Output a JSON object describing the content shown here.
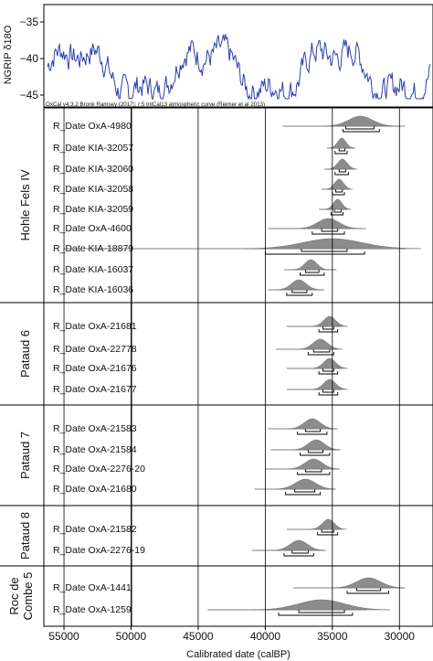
{
  "chart_data": {
    "type": "oxcal-multiplot",
    "colors": {
      "ngrip_line": "#2b3fb0",
      "distribution_fill": "#8c8c8c",
      "frame": "#000000"
    },
    "ngrip": {
      "ylabel": "NGRIP δ18O",
      "yticks": [
        "−35",
        "−40",
        "−45"
      ],
      "ylim": [
        -46,
        -33
      ],
      "attribution": "OxCal v4.3.2 Bronk Ramsey (2017); r:5 IntCal13 atmospheric curve (Reimer et al 2013)"
    },
    "x_axis": {
      "label": "Calibrated date (calBP)",
      "reversed": true,
      "xlim": [
        56500,
        27500
      ],
      "ticks": [
        55000,
        50000,
        45000,
        40000,
        35000,
        30000
      ],
      "tick_labels": [
        "55000",
        "50000",
        "45000",
        "40000",
        "35000",
        "30000"
      ]
    },
    "groups": [
      {
        "name": "Hohle Fels IV",
        "dates": [
          {
            "label": "R_Date OxA-4980",
            "peak": 32900,
            "sigma": 900,
            "range95": [
              38700,
              29600
            ],
            "hpd68": [
              34000,
              31900
            ],
            "hpd95": [
              34200,
              31500
            ]
          },
          {
            "label": "R_Date KIA-32057",
            "peak": 34300,
            "sigma": 320,
            "range95": [
              35400,
              33300
            ],
            "hpd68": [
              34500,
              34050
            ],
            "hpd95": [
              34800,
              33900
            ]
          },
          {
            "label": "R_Date KIA-32060",
            "peak": 34250,
            "sigma": 360,
            "range95": [
              35600,
              33300
            ],
            "hpd68": [
              34500,
              34000
            ],
            "hpd95": [
              34800,
              33800
            ]
          },
          {
            "label": "R_Date KIA-32058",
            "peak": 34500,
            "sigma": 340,
            "range95": [
              35800,
              33800
            ],
            "hpd68": [
              34750,
              34250
            ],
            "hpd95": [
              35000,
              34100
            ]
          },
          {
            "label": "R_Date KIA-32059",
            "peak": 34600,
            "sigma": 330,
            "range95": [
              36000,
              33900
            ],
            "hpd68": [
              34850,
              34350
            ],
            "hpd95": [
              35100,
              34200
            ]
          },
          {
            "label": "R_Date OxA-4600",
            "peak": 35300,
            "sigma": 800,
            "range95": [
              39800,
              32500
            ],
            "hpd68": [
              35800,
              34600
            ],
            "hpd95": [
              36500,
              34100
            ]
          },
          {
            "label": "R_Date KIA-18879",
            "peak": 35000,
            "sigma": 2200,
            "range95": [
              55000,
              29500
            ],
            "hpd68": [
              37300,
              33900
            ],
            "hpd95": [
              40000,
              32600
            ]
          },
          {
            "label": "R_Date KIA-16037",
            "peak": 36600,
            "sigma": 450,
            "range95": [
              38600,
              34700
            ],
            "hpd68": [
              37000,
              36000
            ],
            "hpd95": [
              37400,
              35600
            ]
          },
          {
            "label": "R_Date KIA-16036",
            "peak": 37500,
            "sigma": 550,
            "range95": [
              39800,
              35600
            ],
            "hpd68": [
              38000,
              36900
            ],
            "hpd95": [
              38400,
              36500
            ]
          }
        ]
      },
      {
        "name": "Pataud 6",
        "dates": [
          {
            "label": "R_Date OxA-21681",
            "peak": 35200,
            "sigma": 450,
            "range95": [
              38400,
              34300
            ],
            "hpd68": [
              35700,
              34900
            ],
            "hpd95": [
              36000,
              34600
            ]
          },
          {
            "label": "R_Date OxA-22778",
            "peak": 35900,
            "sigma": 550,
            "range95": [
              39200,
              34600
            ],
            "hpd68": [
              36400,
              35200
            ],
            "hpd95": [
              36800,
              34900
            ]
          },
          {
            "label": "R_Date OxA-21676",
            "peak": 35200,
            "sigma": 450,
            "range95": [
              38400,
              34300
            ],
            "hpd68": [
              35700,
              34900
            ],
            "hpd95": [
              36000,
              34600
            ]
          },
          {
            "label": "R_Date OxA-21677",
            "peak": 35200,
            "sigma": 450,
            "range95": [
              38400,
              34300
            ],
            "hpd68": [
              35700,
              34900
            ],
            "hpd95": [
              36000,
              34600
            ]
          }
        ]
      },
      {
        "name": "Pataud 7",
        "dates": [
          {
            "label": "R_Date OxA-21583",
            "peak": 36500,
            "sigma": 600,
            "range95": [
              39800,
              34600
            ],
            "hpd68": [
              37000,
              35900
            ],
            "hpd95": [
              37600,
              35400
            ]
          },
          {
            "label": "R_Date OxA-21584",
            "peak": 36200,
            "sigma": 600,
            "range95": [
              39600,
              34500
            ],
            "hpd68": [
              36800,
              35700
            ],
            "hpd95": [
              37400,
              35200
            ]
          },
          {
            "label": "R_Date OxA-2276-20",
            "peak": 36400,
            "sigma": 650,
            "range95": [
              40000,
              34500
            ],
            "hpd68": [
              37000,
              35800
            ],
            "hpd95": [
              37600,
              35200
            ]
          },
          {
            "label": "R_Date OxA-21680",
            "peak": 37000,
            "sigma": 750,
            "range95": [
              40800,
              34800
            ],
            "hpd68": [
              37800,
              36300
            ],
            "hpd95": [
              38500,
              35900
            ]
          }
        ]
      },
      {
        "name": "Pataud 8",
        "dates": [
          {
            "label": "R_Date OxA-21582",
            "peak": 35300,
            "sigma": 450,
            "range95": [
              38400,
              34400
            ],
            "hpd68": [
              35800,
              34900
            ],
            "hpd95": [
              36100,
              34600
            ]
          },
          {
            "label": "R_Date OxA-2276-19",
            "peak": 37500,
            "sigma": 650,
            "range95": [
              41000,
              35500
            ],
            "hpd68": [
              38000,
              36800
            ],
            "hpd95": [
              38600,
              36400
            ]
          }
        ]
      },
      {
        "name": "Roc de Combe 5",
        "dates": [
          {
            "label": "R_Date OxA-1441",
            "peak": 32300,
            "sigma": 900,
            "range95": [
              37900,
              29600
            ],
            "hpd68": [
              33200,
              31400
            ],
            "hpd95": [
              33900,
              30800
            ]
          },
          {
            "label": "R_Date OxA-1259",
            "peak": 35800,
            "sigma": 1700,
            "range95": [
              44300,
              32500
            ],
            "hpd68": [
              37500,
              34100
            ],
            "hpd95": [
              39000,
              33500
            ]
          }
        ]
      }
    ]
  }
}
